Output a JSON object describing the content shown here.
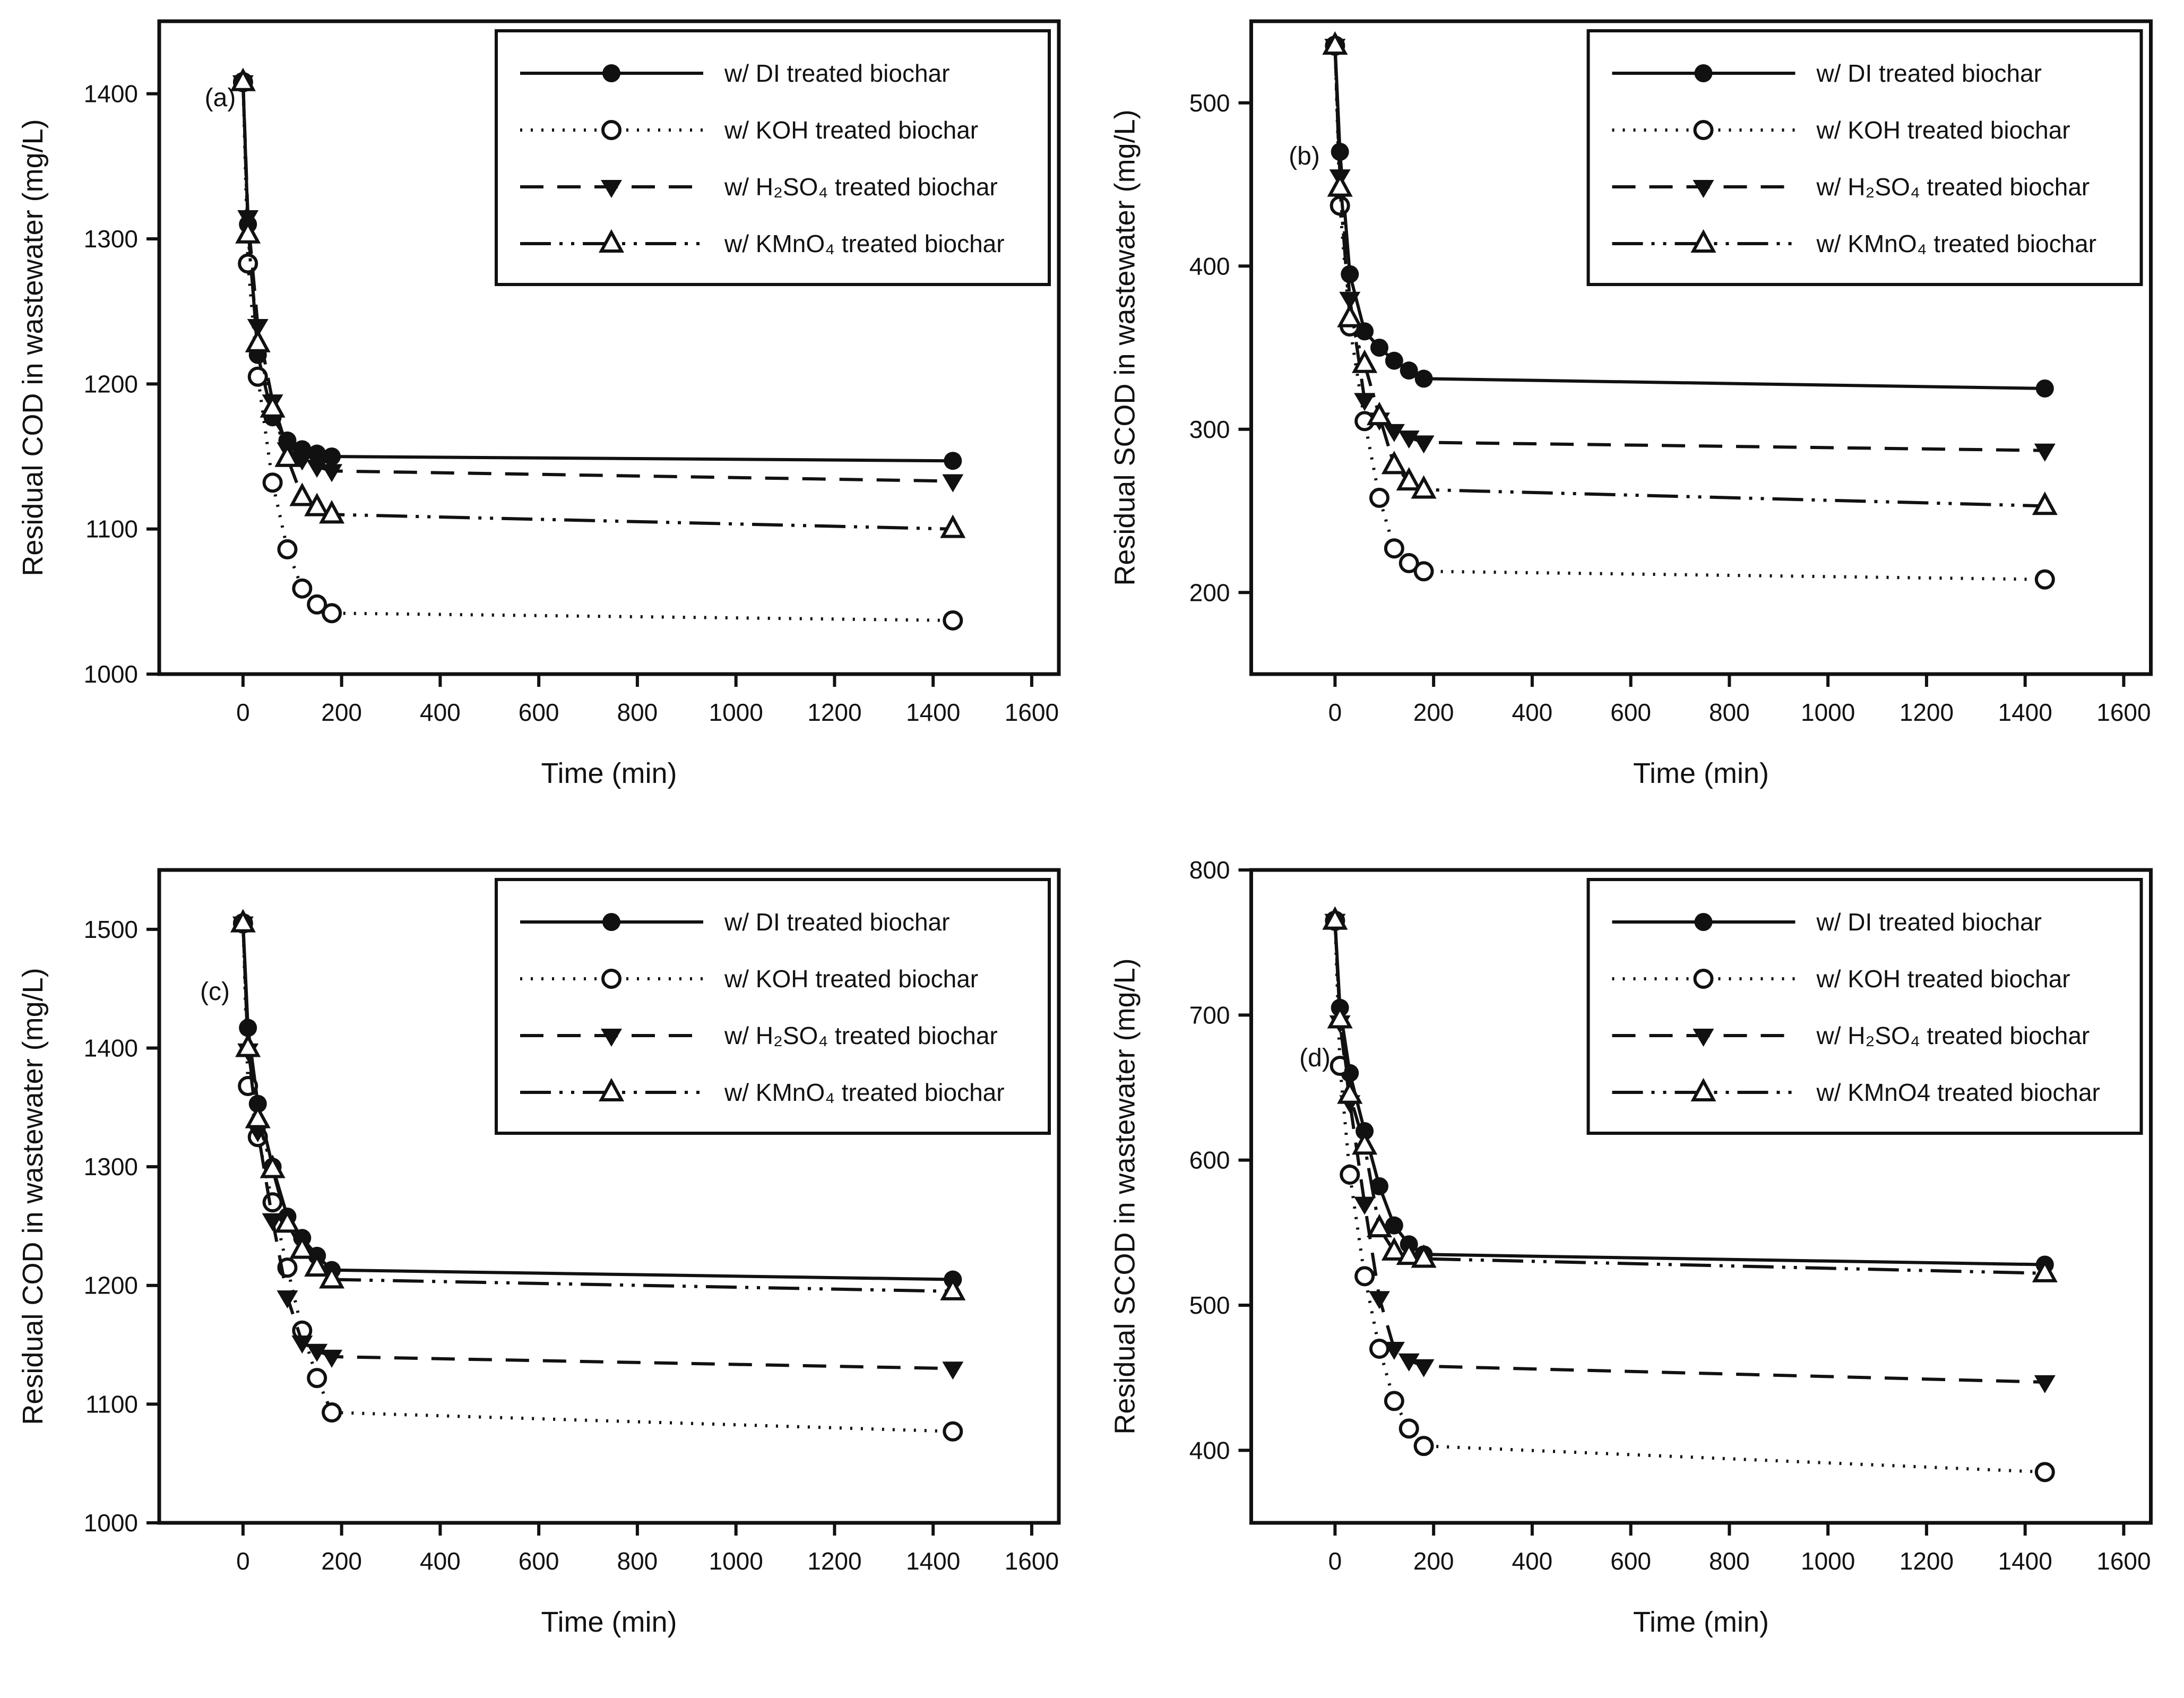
{
  "figure": {
    "background": "#ffffff",
    "ink": "#111111"
  },
  "chart_data": [
    {
      "id": "a",
      "type": "line",
      "panel_label": "(a)",
      "xlabel": "Time (min)",
      "ylabel": "Residual COD in wastewater (mg/L)",
      "xlim": [
        -170,
        1655
      ],
      "ylim": [
        1000,
        1450
      ],
      "x_ticks": [
        0,
        200,
        400,
        600,
        800,
        1000,
        1200,
        1400,
        1600
      ],
      "y_ticks": [
        1000,
        1100,
        1200,
        1300,
        1400
      ],
      "grid": false,
      "legend_position": "top-right",
      "x": [
        0,
        10,
        30,
        60,
        90,
        120,
        150,
        180,
        1440
      ],
      "series": [
        {
          "name": "w/ DI treated biochar",
          "marker": "filled-circle",
          "line_style": "solid",
          "values": [
            1408,
            1310,
            1220,
            1177,
            1161,
            1155,
            1152,
            1150,
            1147
          ]
        },
        {
          "name": "w/ KOH treated biochar",
          "marker": "open-circle",
          "line_style": "dotted",
          "values": [
            1408,
            1283,
            1205,
            1132,
            1086,
            1059,
            1048,
            1042,
            1037
          ]
        },
        {
          "name": "w/ H₂SO₄ treated biochar",
          "marker": "filled-triangle-down",
          "line_style": "dashed",
          "values": [
            1408,
            1315,
            1240,
            1188,
            1155,
            1148,
            1143,
            1140,
            1133
          ]
        },
        {
          "name": "w/ KMnO₄ treated biochar",
          "marker": "open-triangle-up",
          "line_style": "dashdotdot",
          "values": [
            1408,
            1303,
            1228,
            1183,
            1149,
            1122,
            1115,
            1110,
            1100
          ]
        }
      ]
    },
    {
      "id": "b",
      "type": "line",
      "panel_label": "(b)",
      "xlabel": "Time (min)",
      "ylabel": "Residual SCOD in wastewater (mg/L)",
      "xlim": [
        -170,
        1655
      ],
      "ylim": [
        150,
        550
      ],
      "x_ticks": [
        0,
        200,
        400,
        600,
        800,
        1000,
        1200,
        1400,
        1600
      ],
      "y_ticks": [
        200,
        300,
        400,
        500
      ],
      "grid": false,
      "legend_position": "top-right",
      "x": [
        0,
        10,
        30,
        60,
        90,
        120,
        150,
        180,
        1440
      ],
      "series": [
        {
          "name": "w/ DI treated biochar",
          "marker": "filled-circle",
          "line_style": "solid",
          "values": [
            535,
            470,
            395,
            360,
            350,
            342,
            336,
            331,
            325
          ]
        },
        {
          "name": "w/ KOH treated biochar",
          "marker": "open-circle",
          "line_style": "dotted",
          "values": [
            535,
            437,
            363,
            305,
            258,
            227,
            218,
            213,
            208
          ]
        },
        {
          "name": "w/ H₂SO₄ treated biochar",
          "marker": "filled-triangle-down",
          "line_style": "dashed",
          "values": [
            535,
            455,
            380,
            318,
            306,
            299,
            295,
            292,
            287
          ]
        },
        {
          "name": "w/ KMnO₄ treated biochar",
          "marker": "open-triangle-up",
          "line_style": "dashdotdot",
          "values": [
            535,
            448,
            368,
            340,
            308,
            278,
            268,
            263,
            253
          ]
        }
      ]
    },
    {
      "id": "c",
      "type": "line",
      "panel_label": "(c)",
      "xlabel": "Time (min)",
      "ylabel": "Residual COD in wastewater (mg/L)",
      "xlim": [
        -170,
        1655
      ],
      "ylim": [
        1000,
        1550
      ],
      "x_ticks": [
        0,
        200,
        400,
        600,
        800,
        1000,
        1200,
        1400,
        1600
      ],
      "y_ticks": [
        1000,
        1100,
        1200,
        1300,
        1400,
        1500
      ],
      "grid": false,
      "legend_position": "top-right",
      "x": [
        0,
        10,
        30,
        60,
        90,
        120,
        150,
        180,
        1440
      ],
      "series": [
        {
          "name": "w/ DI treated biochar",
          "marker": "filled-circle",
          "line_style": "solid",
          "values": [
            1505,
            1417,
            1353,
            1300,
            1258,
            1240,
            1225,
            1213,
            1205
          ]
        },
        {
          "name": "w/ KOH treated biochar",
          "marker": "open-circle",
          "line_style": "dotted",
          "values": [
            1505,
            1368,
            1325,
            1270,
            1215,
            1162,
            1122,
            1093,
            1077
          ]
        },
        {
          "name": "w/ H₂SO₄ treated biochar",
          "marker": "filled-triangle-down",
          "line_style": "dashed",
          "values": [
            1505,
            1398,
            1330,
            1255,
            1190,
            1152,
            1145,
            1140,
            1130
          ]
        },
        {
          "name": "w/ KMnO₄ treated biochar",
          "marker": "open-triangle-up",
          "line_style": "dashdotdot",
          "values": [
            1505,
            1400,
            1340,
            1298,
            1252,
            1230,
            1215,
            1205,
            1195
          ]
        }
      ]
    },
    {
      "id": "d",
      "type": "line",
      "panel_label": "(d)",
      "xlabel": "Time (min)",
      "ylabel": "Residual SCOD in wastewater (mg/L)",
      "xlim": [
        -170,
        1655
      ],
      "ylim": [
        350,
        800
      ],
      "x_ticks": [
        0,
        200,
        400,
        600,
        800,
        1000,
        1200,
        1400,
        1600
      ],
      "y_ticks": [
        400,
        500,
        600,
        700,
        800
      ],
      "grid": false,
      "legend_position": "top-right",
      "x": [
        0,
        10,
        30,
        60,
        90,
        120,
        150,
        180,
        1440
      ],
      "series": [
        {
          "name": "w/ DI treated biochar",
          "marker": "filled-circle",
          "line_style": "solid",
          "values": [
            765,
            705,
            660,
            620,
            582,
            555,
            542,
            535,
            528
          ]
        },
        {
          "name": "w/ KOH treated biochar",
          "marker": "open-circle",
          "line_style": "dotted",
          "values": [
            765,
            665,
            590,
            520,
            470,
            434,
            415,
            403,
            385
          ]
        },
        {
          "name": "w/ H₂SO₄ treated biochar",
          "marker": "filled-triangle-down",
          "line_style": "dashed",
          "values": [
            765,
            695,
            640,
            570,
            505,
            470,
            462,
            458,
            447
          ]
        },
        {
          "name": "w/ KMnO4 treated biochar",
          "marker": "open-triangle-up",
          "line_style": "dashdotdot",
          "values": [
            765,
            697,
            645,
            610,
            553,
            537,
            534,
            532,
            522
          ]
        }
      ]
    }
  ]
}
